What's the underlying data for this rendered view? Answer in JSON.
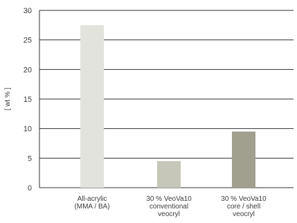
{
  "chart_data": {
    "type": "bar",
    "categories": [
      [
        "All-acrylic",
        "(MMA / BA)"
      ],
      [
        "30 % VeoVa10",
        "conventional",
        "veocryl"
      ],
      [
        "30 % VeoVa10",
        "core / shell",
        "veocryl"
      ]
    ],
    "values": [
      27.5,
      4.5,
      9.5
    ],
    "colors": [
      "#e2e3dc",
      "#c6c7b9",
      "#a19f8e"
    ],
    "ylabel": "[ wt % ]",
    "ylim": [
      0,
      30
    ],
    "yticks": [
      0,
      5,
      10,
      15,
      20,
      25,
      30
    ],
    "grid": true
  }
}
